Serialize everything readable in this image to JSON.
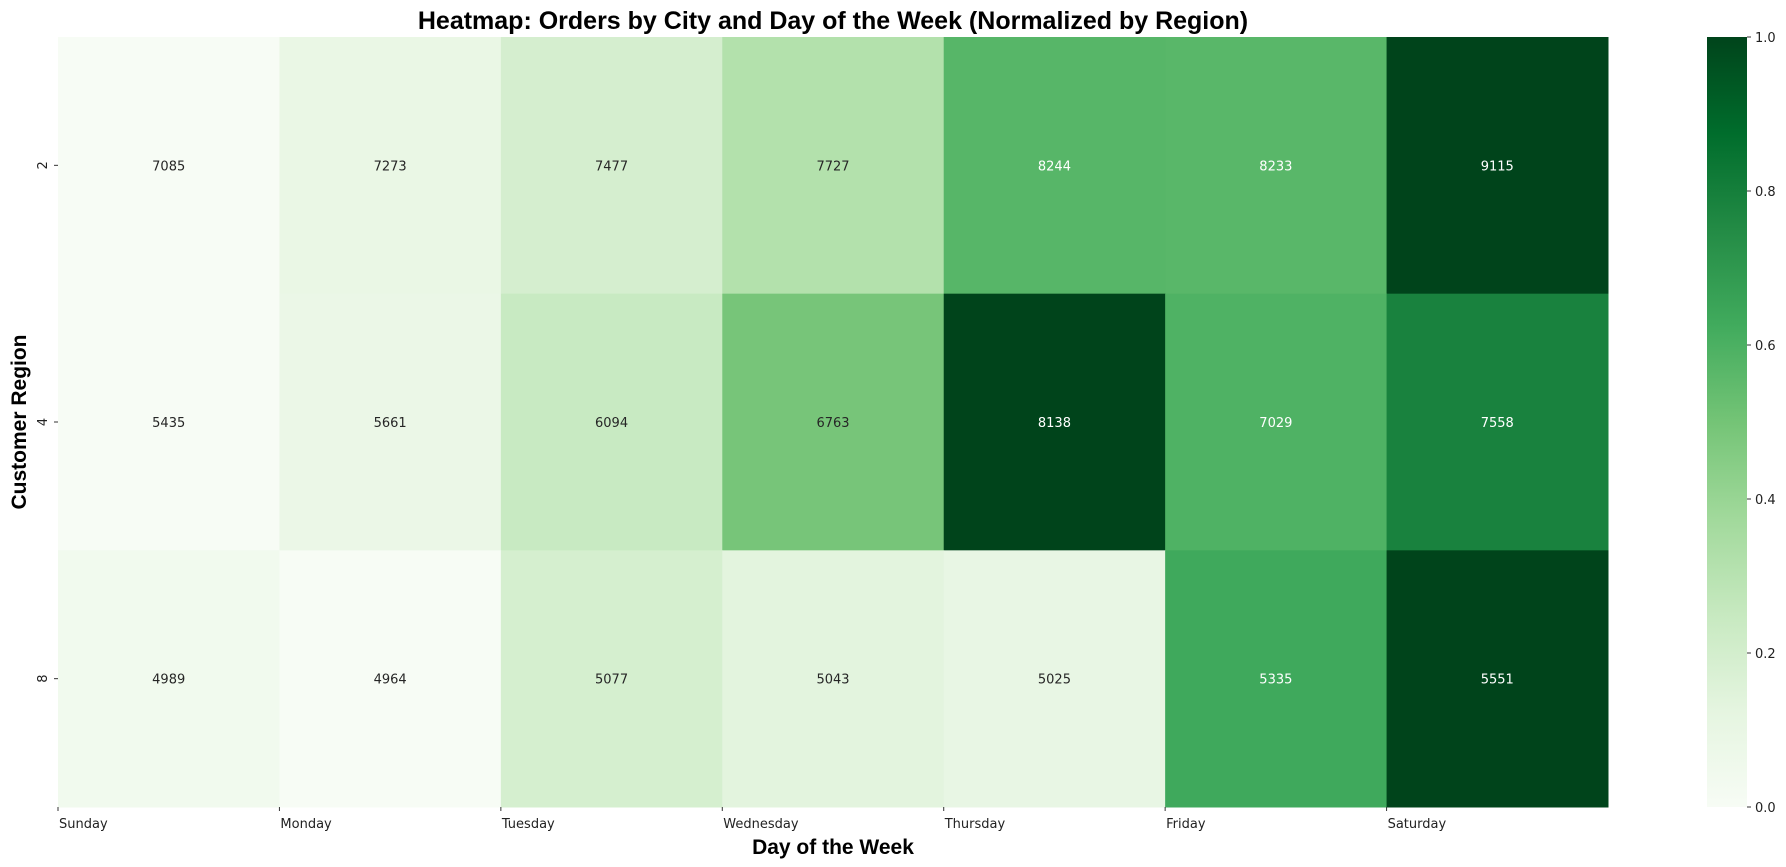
{
  "chart_data": {
    "type": "heatmap",
    "title": "Heatmap: Orders by City and Day of the Week (Normalized by Region)",
    "xlabel": "Day of the Week",
    "ylabel": "Customer Region",
    "x_categories": [
      "Sunday",
      "Monday",
      "Tuesday",
      "Wednesday",
      "Thursday",
      "Friday",
      "Saturday"
    ],
    "y_categories": [
      "2",
      "4",
      "8"
    ],
    "values": [
      [
        7085,
        7273,
        7477,
        7727,
        8244,
        8233,
        9115
      ],
      [
        5435,
        5661,
        6094,
        6763,
        8138,
        7029,
        7558
      ],
      [
        4989,
        4964,
        5077,
        5043,
        5025,
        5335,
        5551
      ]
    ],
    "normalization": "row",
    "colormap": "Greens",
    "colorbar": {
      "ticks": [
        "0.0",
        "0.2",
        "0.4",
        "0.6",
        "0.8",
        "1.0"
      ],
      "range": [
        0,
        1
      ]
    },
    "colors": {
      "low": "#f7fcf5",
      "high": "#00441b",
      "text_dark": "#262626",
      "text_light": "#ffffff"
    }
  }
}
